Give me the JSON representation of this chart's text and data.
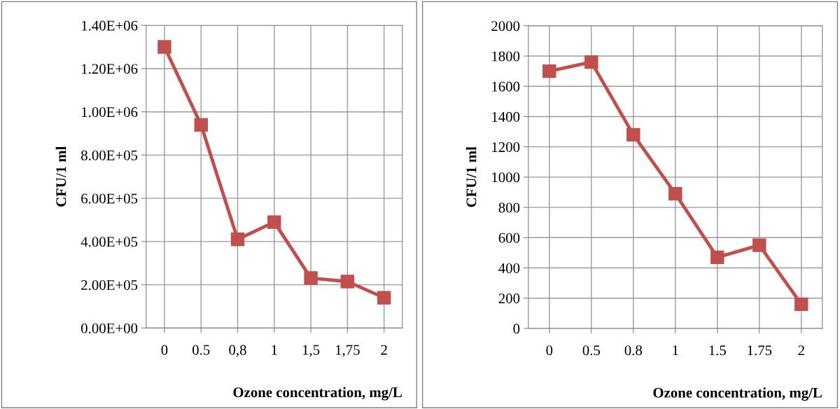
{
  "chart_data": [
    {
      "type": "line",
      "xlabel": "Ozone concentration, mg/L",
      "ylabel": "CFU/1 ml",
      "categories": [
        "0",
        "0.5",
        "0,8",
        "1",
        "1,5",
        "1,75",
        "2"
      ],
      "series": [
        {
          "color": "#c0504d",
          "values": [
            1300000,
            940000,
            410000,
            490000,
            231000,
            215000,
            140000
          ]
        }
      ],
      "ylim": [
        0,
        1400000
      ],
      "yticks": [
        {
          "value": 0,
          "label": "0.00E+00"
        },
        {
          "value": 200000,
          "label": "2.00E+05"
        },
        {
          "value": 400000,
          "label": "4.00E+05"
        },
        {
          "value": 600000,
          "label": "6.00E+05"
        },
        {
          "value": 800000,
          "label": "8.00E+05"
        },
        {
          "value": 1000000,
          "label": "1.00E+06"
        },
        {
          "value": 1200000,
          "label": "1.20E+06"
        },
        {
          "value": 1400000,
          "label": "1.40E+06"
        }
      ],
      "grid": true,
      "marker": "square",
      "line_style": "solid"
    },
    {
      "type": "line",
      "xlabel": "Ozone concentration, mg/L",
      "ylabel": "CFU/1 ml",
      "categories": [
        "0",
        "0.5",
        "0.8",
        "1",
        "1.5",
        "1.75",
        "2"
      ],
      "series": [
        {
          "color": "#c0504d",
          "values": [
            1700,
            1760,
            1280,
            890,
            470,
            550,
            160
          ]
        }
      ],
      "ylim": [
        0,
        2000
      ],
      "yticks": [
        0,
        200,
        400,
        600,
        800,
        1000,
        1200,
        1400,
        1600,
        1800,
        2000
      ],
      "grid": true,
      "marker": "square",
      "line_style": "solid"
    }
  ]
}
